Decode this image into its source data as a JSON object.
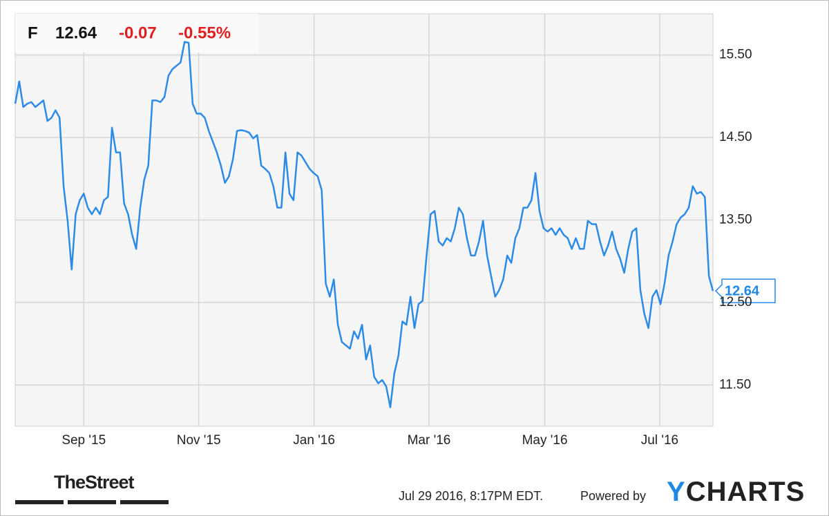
{
  "header": {
    "ticker": "F",
    "price": "12.64",
    "change": "-0.07",
    "change_pct": "-0.55%"
  },
  "chart_data": {
    "type": "line",
    "series": [
      {
        "name": "F",
        "color": "#2b8ae6",
        "values": [
          14.91,
          15.18,
          14.87,
          14.91,
          14.93,
          14.87,
          14.91,
          14.95,
          14.7,
          14.74,
          14.83,
          14.74,
          13.91,
          13.49,
          12.9,
          13.57,
          13.74,
          13.82,
          13.65,
          13.57,
          13.65,
          13.57,
          13.74,
          13.78,
          14.62,
          14.32,
          14.32,
          13.7,
          13.57,
          13.32,
          13.15,
          13.65,
          13.99,
          14.16,
          14.95,
          14.95,
          14.93,
          14.99,
          15.25,
          15.33,
          15.37,
          15.41,
          15.66,
          15.65,
          14.91,
          14.79,
          14.79,
          14.74,
          14.58,
          14.45,
          14.32,
          14.16,
          13.95,
          14.03,
          14.24,
          14.58,
          14.59,
          14.58,
          14.56,
          14.49,
          14.53,
          14.16,
          14.12,
          14.07,
          13.91,
          13.65,
          13.65,
          14.32,
          13.82,
          13.74,
          14.32,
          14.28,
          14.2,
          14.12,
          14.07,
          14.03,
          13.86,
          12.73,
          12.57,
          12.78,
          12.23,
          12.02,
          11.98,
          11.94,
          12.15,
          12.06,
          12.23,
          11.81,
          11.98,
          11.6,
          11.52,
          11.56,
          11.48,
          11.23,
          11.64,
          11.85,
          12.27,
          12.23,
          12.57,
          12.19,
          12.48,
          12.52,
          13.07,
          13.57,
          13.61,
          13.24,
          13.19,
          13.28,
          13.24,
          13.4,
          13.65,
          13.57,
          13.28,
          13.07,
          13.07,
          13.24,
          13.49,
          13.07,
          12.82,
          12.57,
          12.65,
          12.78,
          13.07,
          12.98,
          13.28,
          13.4,
          13.65,
          13.65,
          13.74,
          14.07,
          13.61,
          13.4,
          13.36,
          13.4,
          13.32,
          13.4,
          13.32,
          13.28,
          13.15,
          13.28,
          13.15,
          13.15,
          13.49,
          13.45,
          13.45,
          13.24,
          13.07,
          13.19,
          13.36,
          13.15,
          13.03,
          12.86,
          13.15,
          13.36,
          13.4,
          12.65,
          12.36,
          12.19,
          12.57,
          12.65,
          12.48,
          12.73,
          13.07,
          13.24,
          13.45,
          13.53,
          13.57,
          13.65,
          13.91,
          13.82,
          13.84,
          13.78,
          12.82,
          12.64
        ]
      }
    ],
    "xlim": [
      0,
      173
    ],
    "xticks": [
      {
        "value": 17.0,
        "label": "Sep '15"
      },
      {
        "value": 45.5,
        "label": "Nov '15"
      },
      {
        "value": 74.1,
        "label": "Jan '16"
      },
      {
        "value": 102.6,
        "label": "Mar '16"
      },
      {
        "value": 131.3,
        "label": "May '16"
      },
      {
        "value": 159.8,
        "label": "Jul '16"
      }
    ],
    "ylim": [
      11,
      16
    ],
    "yticks": [
      {
        "value": 11.5,
        "label": "11.50"
      },
      {
        "value": 12.5,
        "label": "12.50"
      },
      {
        "value": 13.5,
        "label": "13.50"
      },
      {
        "value": 14.5,
        "label": "14.50"
      },
      {
        "value": 15.5,
        "label": "15.50"
      }
    ],
    "grid": true
  },
  "footer": {
    "source": "TheStreet",
    "timestamp": "Jul 29 2016, 8:17PM EDT.",
    "powered_by": "Powered by",
    "logo": "YCHARTS"
  }
}
